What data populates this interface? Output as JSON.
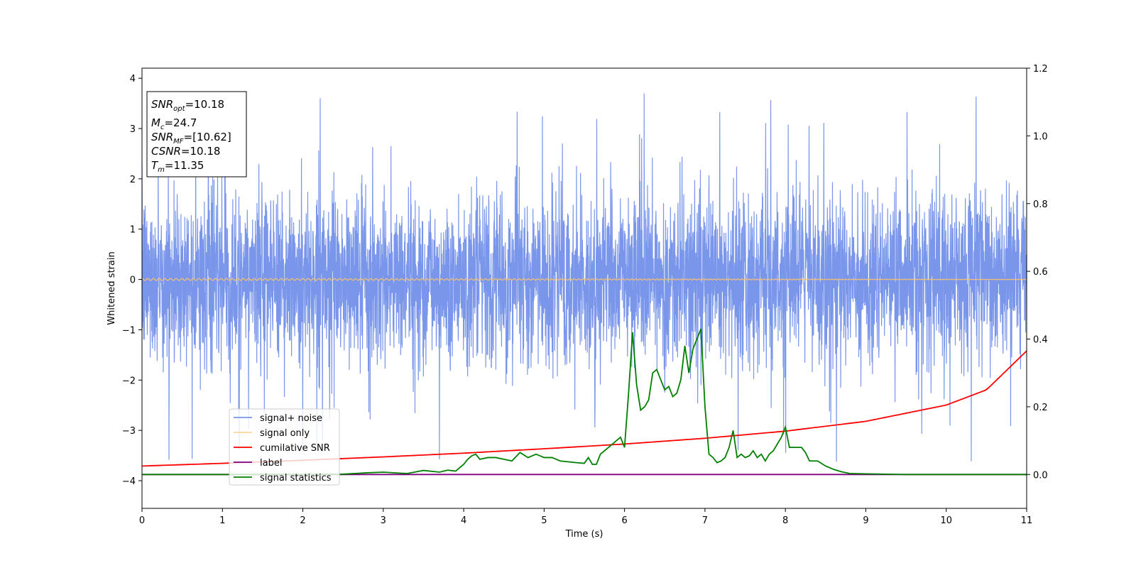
{
  "chart_data": {
    "type": "line",
    "xlabel": "Time (s)",
    "ylabel": "Whitened strain",
    "xlim": [
      0,
      11
    ],
    "ylim_left": [
      -4.55,
      4.2
    ],
    "ylim_right": [
      -0.1,
      1.2
    ],
    "x_ticks": [
      "0",
      "1",
      "2",
      "3",
      "4",
      "5",
      "6",
      "7",
      "8",
      "9",
      "10",
      "11"
    ],
    "y_ticks_left": [
      "−4",
      "−3",
      "−2",
      "−1",
      "0",
      "1",
      "2",
      "3",
      "4"
    ],
    "y_ticks_right": [
      "0.0",
      "0.2",
      "0.4",
      "0.6",
      "0.8",
      "1.0",
      "1.2"
    ],
    "grid": false,
    "legend_position": "lower-left",
    "annotation": [
      {
        "base": "SNR",
        "sub": "opt",
        "value": "=10.18"
      },
      {
        "base": "M",
        "sub": "c",
        "value": "=24.7"
      },
      {
        "base": "SNR",
        "sub": "MF",
        "value": "=[10.62]"
      },
      {
        "base": "CSNR",
        "sub": "",
        "value": "=10.18"
      },
      {
        "base": "T",
        "sub": "m",
        "value": "=11.35"
      }
    ],
    "series": [
      {
        "name": "signal+ noise",
        "color": "#4169e1",
        "axis": "left",
        "description_values": {
          "mean": 0,
          "typical_range": [
            -2,
            2
          ],
          "max": 3.8,
          "min": -4.15
        }
      },
      {
        "name": "signal only",
        "color": "#ffc36b",
        "axis": "left",
        "chirp": {
          "amplitude_at_t0": 0.02,
          "amplitude_at_t11": 0.25,
          "merger_time": 11.35
        }
      },
      {
        "name": "cumilative SNR",
        "color": "#ff0000",
        "axis": "right",
        "x": [
          0,
          1,
          2,
          3,
          4,
          5,
          6,
          7,
          8,
          9,
          10,
          10.5,
          11
        ],
        "y": [
          0.025,
          0.033,
          0.042,
          0.052,
          0.063,
          0.076,
          0.09,
          0.107,
          0.128,
          0.157,
          0.205,
          0.25,
          0.365
        ]
      },
      {
        "name": "label",
        "color": "#800080",
        "axis": "right",
        "x": [
          0,
          11
        ],
        "y": [
          0,
          0
        ]
      },
      {
        "name": "signal statistics",
        "color": "#008000",
        "axis": "right",
        "x": [
          0,
          0.5,
          1,
          1.5,
          2,
          2.5,
          2.8,
          3.0,
          3.2,
          3.3,
          3.5,
          3.7,
          3.8,
          3.9,
          4.0,
          4.05,
          4.1,
          4.15,
          4.2,
          4.3,
          4.4,
          4.5,
          4.6,
          4.7,
          4.8,
          4.9,
          5.0,
          5.1,
          5.2,
          5.4,
          5.5,
          5.55,
          5.6,
          5.65,
          5.7,
          5.8,
          5.9,
          5.95,
          6.0,
          6.05,
          6.1,
          6.15,
          6.2,
          6.25,
          6.3,
          6.35,
          6.4,
          6.45,
          6.5,
          6.55,
          6.6,
          6.65,
          6.7,
          6.75,
          6.8,
          6.85,
          6.9,
          6.95,
          7.0,
          7.05,
          7.1,
          7.15,
          7.2,
          7.25,
          7.3,
          7.35,
          7.4,
          7.45,
          7.5,
          7.55,
          7.6,
          7.65,
          7.7,
          7.75,
          7.8,
          7.85,
          7.9,
          7.95,
          8.0,
          8.05,
          8.1,
          8.15,
          8.2,
          8.25,
          8.3,
          8.4,
          8.5,
          8.6,
          8.7,
          8.8,
          9.0,
          9.5,
          10,
          11
        ],
        "y": [
          0.0,
          0.0,
          0.0,
          0.0,
          0.0,
          0.001,
          0.005,
          0.007,
          0.004,
          0.003,
          0.012,
          0.007,
          0.013,
          0.01,
          0.03,
          0.045,
          0.055,
          0.06,
          0.045,
          0.05,
          0.05,
          0.045,
          0.04,
          0.065,
          0.05,
          0.06,
          0.05,
          0.05,
          0.04,
          0.035,
          0.033,
          0.05,
          0.03,
          0.03,
          0.06,
          0.08,
          0.1,
          0.11,
          0.08,
          0.24,
          0.42,
          0.265,
          0.19,
          0.2,
          0.22,
          0.3,
          0.31,
          0.28,
          0.25,
          0.26,
          0.23,
          0.24,
          0.28,
          0.38,
          0.3,
          0.37,
          0.4,
          0.43,
          0.2,
          0.06,
          0.05,
          0.035,
          0.04,
          0.05,
          0.08,
          0.13,
          0.05,
          0.06,
          0.05,
          0.055,
          0.07,
          0.05,
          0.06,
          0.04,
          0.06,
          0.07,
          0.09,
          0.11,
          0.14,
          0.08,
          0.08,
          0.08,
          0.08,
          0.065,
          0.04,
          0.04,
          0.025,
          0.015,
          0.008,
          0.003,
          0.002,
          0.0,
          0.0,
          0.0
        ]
      }
    ]
  }
}
